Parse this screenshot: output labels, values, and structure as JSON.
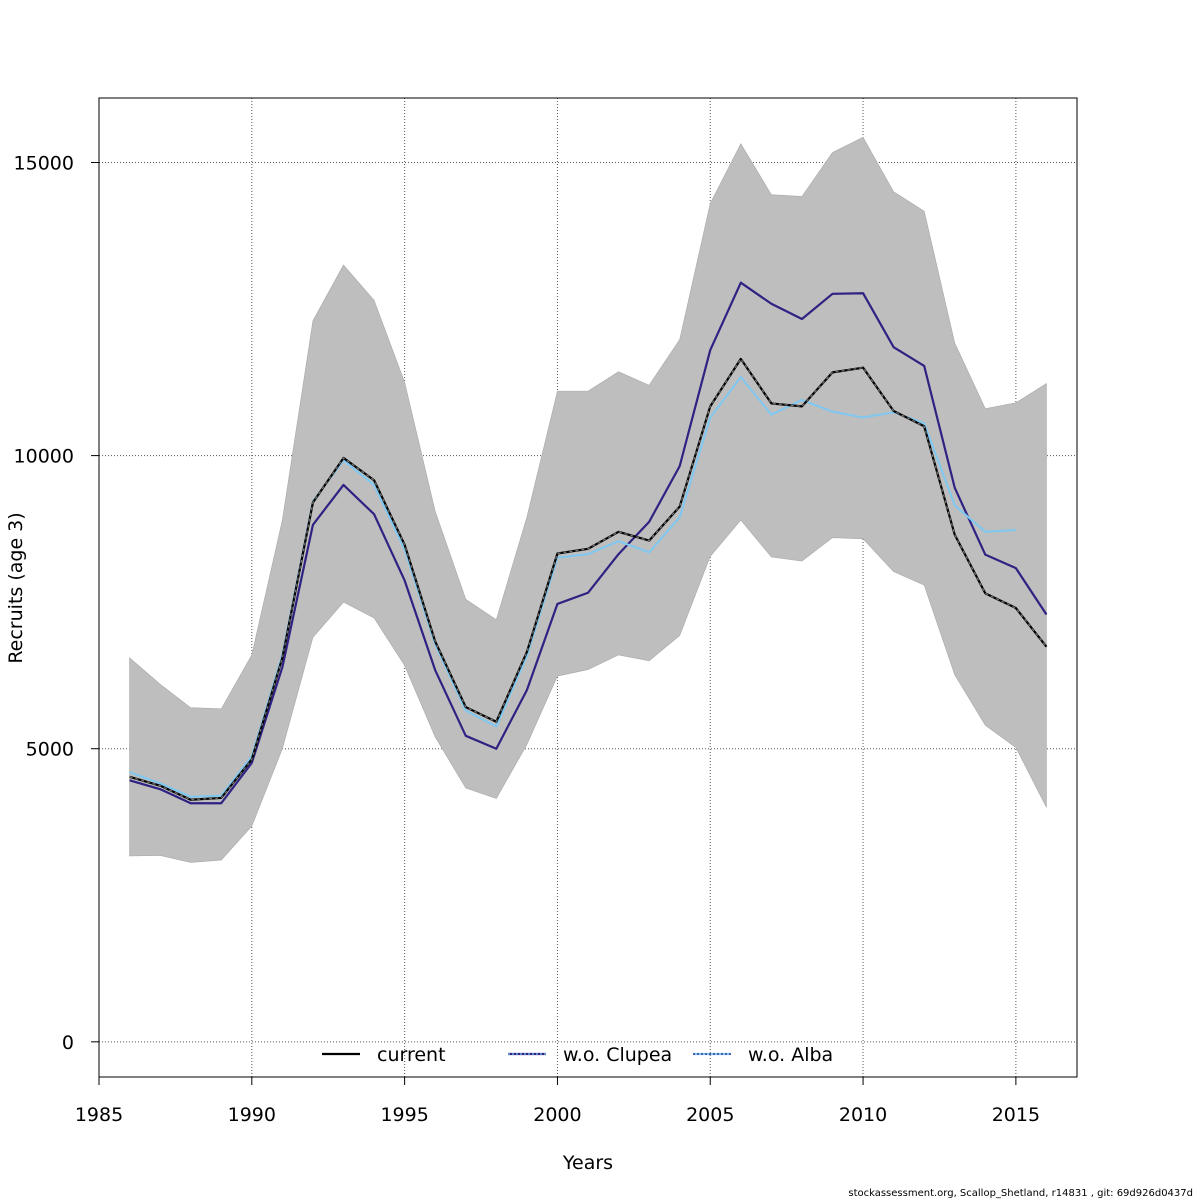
{
  "chart_data": {
    "type": "line",
    "xlabel": "Years",
    "ylabel": "Recruits (age 3)",
    "xlim": [
      1985,
      2017
    ],
    "ylim": [
      -600,
      16100
    ],
    "x_ticks": [
      1985,
      1990,
      1995,
      2000,
      2005,
      2010,
      2015
    ],
    "y_ticks": [
      0,
      5000,
      10000,
      15000
    ],
    "grid": true,
    "legend_position": "bottom",
    "x": [
      1986,
      1987,
      1988,
      1989,
      1990,
      1991,
      1992,
      1993,
      1994,
      1995,
      1996,
      1997,
      1998,
      1999,
      2000,
      2001,
      2002,
      2003,
      2004,
      2005,
      2006,
      2007,
      2008,
      2009,
      2010,
      2011,
      2012,
      2013,
      2014,
      2015,
      2016
    ],
    "band": {
      "color": "#bebebe",
      "upper": [
        6550,
        6100,
        5700,
        5680,
        6600,
        8900,
        12300,
        13250,
        12650,
        11250,
        9050,
        7550,
        7200,
        8950,
        11100,
        11100,
        11430,
        11200,
        11980,
        14300,
        15320,
        14450,
        14420,
        15170,
        15430,
        14500,
        14170,
        11920,
        10800,
        10900,
        11230
      ],
      "lower": [
        3170,
        3180,
        3060,
        3100,
        3680,
        5000,
        6900,
        7500,
        7230,
        6420,
        5200,
        4330,
        4150,
        5070,
        6240,
        6350,
        6600,
        6500,
        6930,
        8280,
        8900,
        8270,
        8200,
        8600,
        8580,
        8020,
        7790,
        6260,
        5400,
        5020,
        4000
      ]
    },
    "series": [
      {
        "name": "current",
        "color": "#000000",
        "values": [
          4520,
          4370,
          4130,
          4160,
          4820,
          6550,
          9200,
          9960,
          9580,
          8480,
          6830,
          5710,
          5460,
          6650,
          8330,
          8410,
          8700,
          8550,
          9130,
          10840,
          11650,
          10890,
          10840,
          11420,
          11500,
          10760,
          10500,
          8650,
          7650,
          7400,
          6740
        ]
      },
      {
        "name": "w.o. Clupea",
        "color": "#2e2282",
        "values": [
          4460,
          4310,
          4070,
          4070,
          4760,
          6390,
          8820,
          9500,
          9000,
          7870,
          6340,
          5220,
          5000,
          6000,
          7470,
          7660,
          8320,
          8870,
          9820,
          11800,
          12950,
          12590,
          12330,
          12760,
          12770,
          11850,
          11530,
          9450,
          8310,
          8080,
          7290
        ]
      },
      {
        "name": "w.o. Alba",
        "color": "#7ec8f2",
        "values": [
          4600,
          4410,
          4180,
          4200,
          4870,
          6600,
          9220,
          9920,
          9500,
          8400,
          6780,
          5650,
          5380,
          6580,
          8260,
          8320,
          8540,
          8350,
          8950,
          10650,
          11340,
          10700,
          10950,
          10750,
          10650,
          10740,
          10550,
          9150,
          8700,
          8730,
          null
        ]
      }
    ]
  },
  "footer": "stockassessment.org, Scallop_Shetland, r14831 , git: 69d926d0437d"
}
